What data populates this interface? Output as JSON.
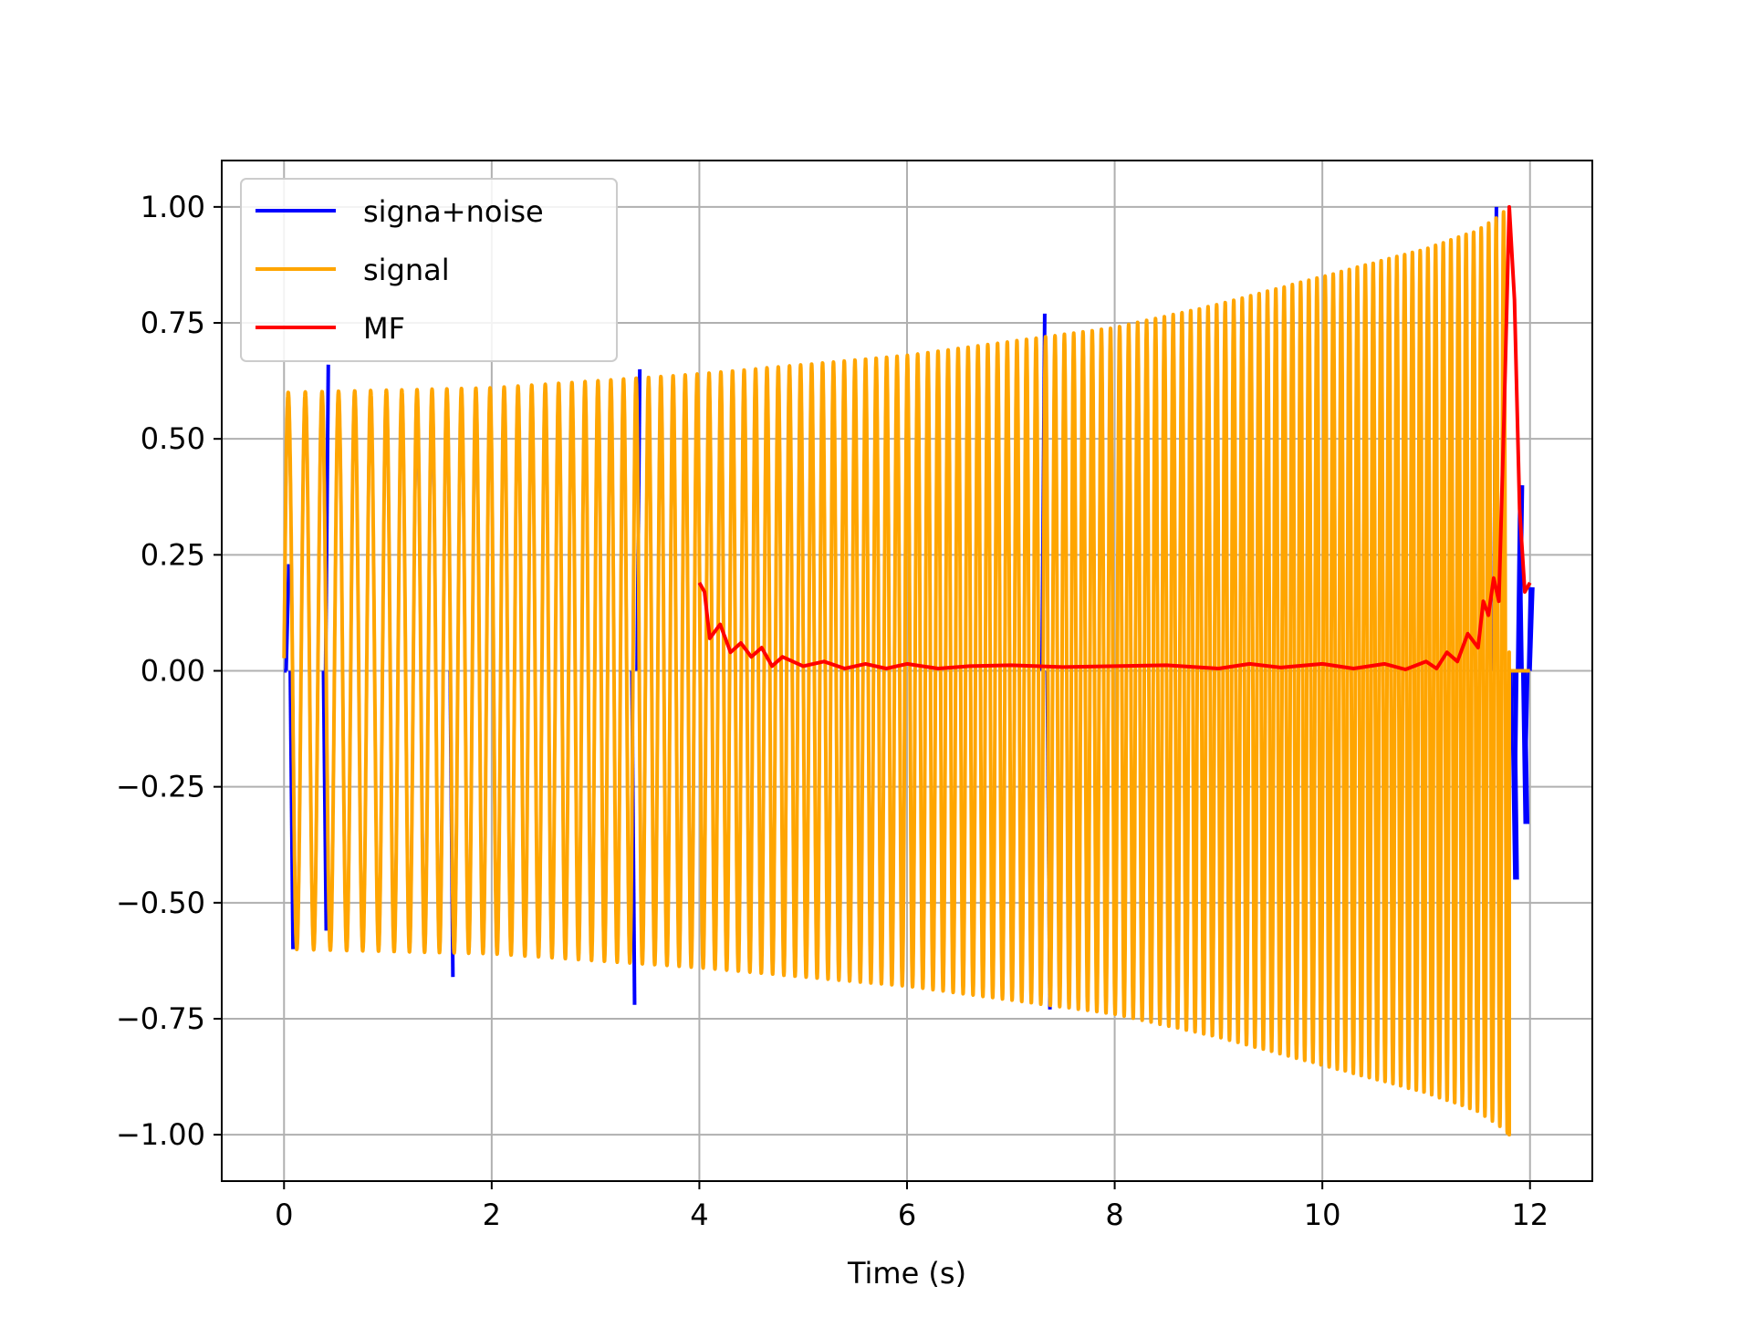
{
  "chart_data": {
    "type": "line",
    "title": "",
    "xlabel": "Time (s)",
    "ylabel": "",
    "xlim": [
      -0.6,
      12.6
    ],
    "ylim": [
      -1.1,
      1.1
    ],
    "grid": true,
    "legend_position": "top-left",
    "x_ticks": [
      0,
      2,
      4,
      6,
      8,
      10,
      12
    ],
    "x_tick_labels": [
      "0",
      "2",
      "4",
      "6",
      "8",
      "10",
      "12"
    ],
    "y_ticks": [
      -1.0,
      -0.75,
      -0.5,
      -0.25,
      0.0,
      0.25,
      0.5,
      0.75,
      1.0
    ],
    "y_tick_labels": [
      "−1.00",
      "−0.75",
      "−0.50",
      "−0.25",
      "0.00",
      "0.25",
      "0.50",
      "0.75",
      "1.00"
    ],
    "series": [
      {
        "name": "signa+noise",
        "color": "#0000ff",
        "points": [
          [
            0.0,
            0.0
          ],
          [
            0.02,
            0.23
          ],
          [
            0.06,
            -0.6
          ],
          [
            0.4,
            0.66
          ],
          [
            0.38,
            -0.56
          ],
          [
            1.6,
            -0.66
          ],
          [
            3.35,
            -0.72
          ],
          [
            3.4,
            0.65
          ],
          [
            7.3,
            0.77
          ],
          [
            7.35,
            -0.73
          ],
          [
            11.65,
            1.0
          ],
          [
            11.82,
            0.0
          ],
          [
            11.85,
            -0.45
          ],
          [
            11.9,
            0.4
          ],
          [
            11.95,
            -0.33
          ],
          [
            12.0,
            0.18
          ]
        ]
      },
      {
        "name": "signal",
        "color": "#ffa500",
        "envelope": [
          [
            0.0,
            0.6
          ],
          [
            2.0,
            0.61
          ],
          [
            4.0,
            0.64
          ],
          [
            6.0,
            0.68
          ],
          [
            7.0,
            0.71
          ],
          [
            8.0,
            0.74
          ],
          [
            9.0,
            0.79
          ],
          [
            10.0,
            0.85
          ],
          [
            11.0,
            0.91
          ],
          [
            11.5,
            0.95
          ],
          [
            11.7,
            0.98
          ],
          [
            11.8,
            1.0
          ]
        ],
        "end_time": 11.8,
        "flat_after": [
          11.8,
          12.0
        ]
      },
      {
        "name": "MF",
        "color": "#ff0000",
        "points": [
          [
            4.0,
            0.19
          ],
          [
            4.05,
            0.17
          ],
          [
            4.1,
            0.07
          ],
          [
            4.2,
            0.1
          ],
          [
            4.3,
            0.04
          ],
          [
            4.4,
            0.06
          ],
          [
            4.5,
            0.03
          ],
          [
            4.6,
            0.05
          ],
          [
            4.7,
            0.01
          ],
          [
            4.8,
            0.03
          ],
          [
            5.0,
            0.01
          ],
          [
            5.2,
            0.02
          ],
          [
            5.4,
            0.005
          ],
          [
            5.6,
            0.015
          ],
          [
            5.8,
            0.005
          ],
          [
            6.0,
            0.015
          ],
          [
            6.3,
            0.005
          ],
          [
            6.6,
            0.01
          ],
          [
            7.0,
            0.012
          ],
          [
            7.5,
            0.008
          ],
          [
            8.0,
            0.01
          ],
          [
            8.5,
            0.012
          ],
          [
            9.0,
            0.005
          ],
          [
            9.3,
            0.015
          ],
          [
            9.6,
            0.007
          ],
          [
            10.0,
            0.015
          ],
          [
            10.3,
            0.005
          ],
          [
            10.6,
            0.015
          ],
          [
            10.8,
            0.003
          ],
          [
            11.0,
            0.02
          ],
          [
            11.1,
            0.005
          ],
          [
            11.2,
            0.04
          ],
          [
            11.3,
            0.02
          ],
          [
            11.4,
            0.08
          ],
          [
            11.5,
            0.05
          ],
          [
            11.55,
            0.15
          ],
          [
            11.6,
            0.12
          ],
          [
            11.65,
            0.2
          ],
          [
            11.7,
            0.15
          ],
          [
            11.75,
            0.55
          ],
          [
            11.8,
            1.0
          ],
          [
            11.85,
            0.8
          ],
          [
            11.9,
            0.35
          ],
          [
            11.95,
            0.17
          ],
          [
            12.0,
            0.19
          ]
        ]
      }
    ]
  }
}
